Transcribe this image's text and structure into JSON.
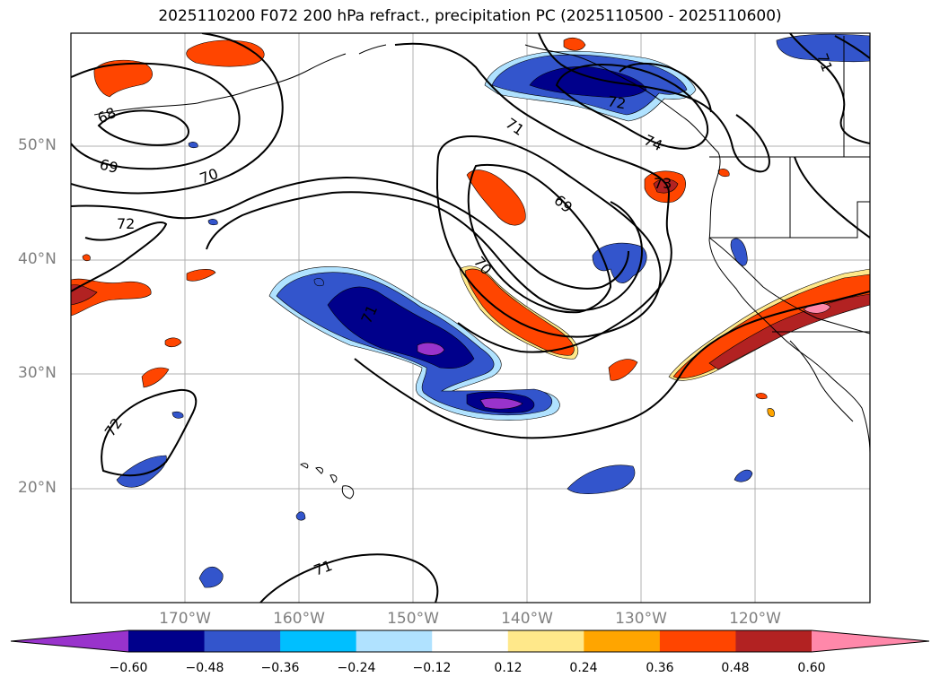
{
  "title": "2025110200 F072 200 hPa refract., precipitation PC (2025110500 - 2025110600)",
  "lat_labels": [
    "50°N",
    "40°N",
    "30°N",
    "20°N"
  ],
  "lon_labels": [
    "170°W",
    "160°W",
    "150°W",
    "140°W",
    "130°W",
    "120°W"
  ],
  "contour_labels": [
    "68",
    "69",
    "70",
    "72",
    "71",
    "69",
    "70",
    "71",
    "74",
    "73",
    "72",
    "71",
    "71",
    "72"
  ],
  "colorbar": {
    "ticks": [
      "−0.60",
      "−0.48",
      "−0.36",
      "−0.24",
      "−0.12",
      "0.12",
      "0.24",
      "0.36",
      "0.48",
      "0.60"
    ],
    "colors": [
      "#9933cc",
      "#00008b",
      "#3355cc",
      "#00bfff",
      "#b0e2ff",
      "#ffffff",
      "#ffe88a",
      "#ffa500",
      "#ff4500",
      "#b22222",
      "#ff88aa"
    ]
  },
  "colors": {
    "neg_light": "#b0e2ff",
    "neg_cyan": "#00bfff",
    "neg_mid": "#3355cc",
    "neg_dark": "#00008b",
    "neg_purple": "#9933cc",
    "pos_yellow": "#ffe88a",
    "pos_orange": "#ffa500",
    "pos_red": "#ff4500",
    "pos_dark": "#b22222",
    "pos_pink": "#ff88aa"
  }
}
